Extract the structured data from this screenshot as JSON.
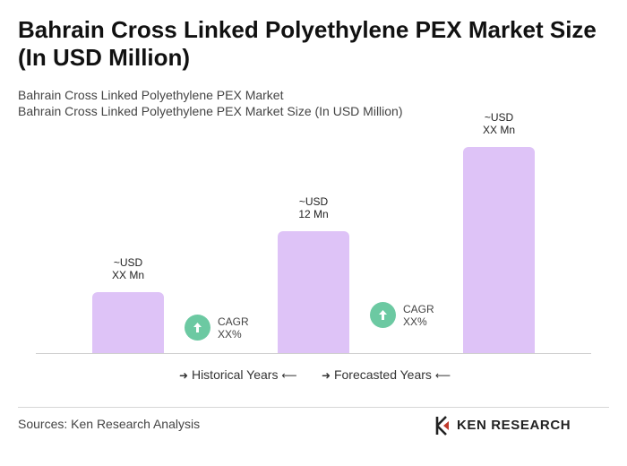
{
  "title": "Bahrain Cross Linked Polyethylene PEX Market Size (In USD Million)",
  "subtitle_1": "Bahrain Cross Linked Polyethylene PEX Market",
  "subtitle_2": "Bahrain Cross Linked Polyethylene PEX Market Size (In USD Million)",
  "colors": {
    "bar": "#dec3f7",
    "cagr_icon": "#6cc9a2"
  },
  "chart_data": {
    "type": "bar",
    "categories": [
      "",
      "",
      ""
    ],
    "values": [
      4,
      8,
      13.5
    ],
    "value_labels": [
      {
        "line1": "~USD",
        "line2": "XX Mn"
      },
      {
        "line1": "~USD",
        "line2": "12 Mn"
      },
      {
        "line1": "~USD",
        "line2": "XX Mn"
      }
    ],
    "cagr": [
      {
        "label": "CAGR",
        "value": "XX%"
      },
      {
        "label": "CAGR",
        "value": "XX%"
      }
    ],
    "legend": [
      "Historical Years",
      "Forecasted Years"
    ],
    "grid": false
  },
  "legend_arrows": {
    "right": "➔",
    "left": "➔"
  },
  "footer": {
    "sources": "Sources: Ken Research Analysis",
    "logo": "KEN RESEARCH"
  }
}
